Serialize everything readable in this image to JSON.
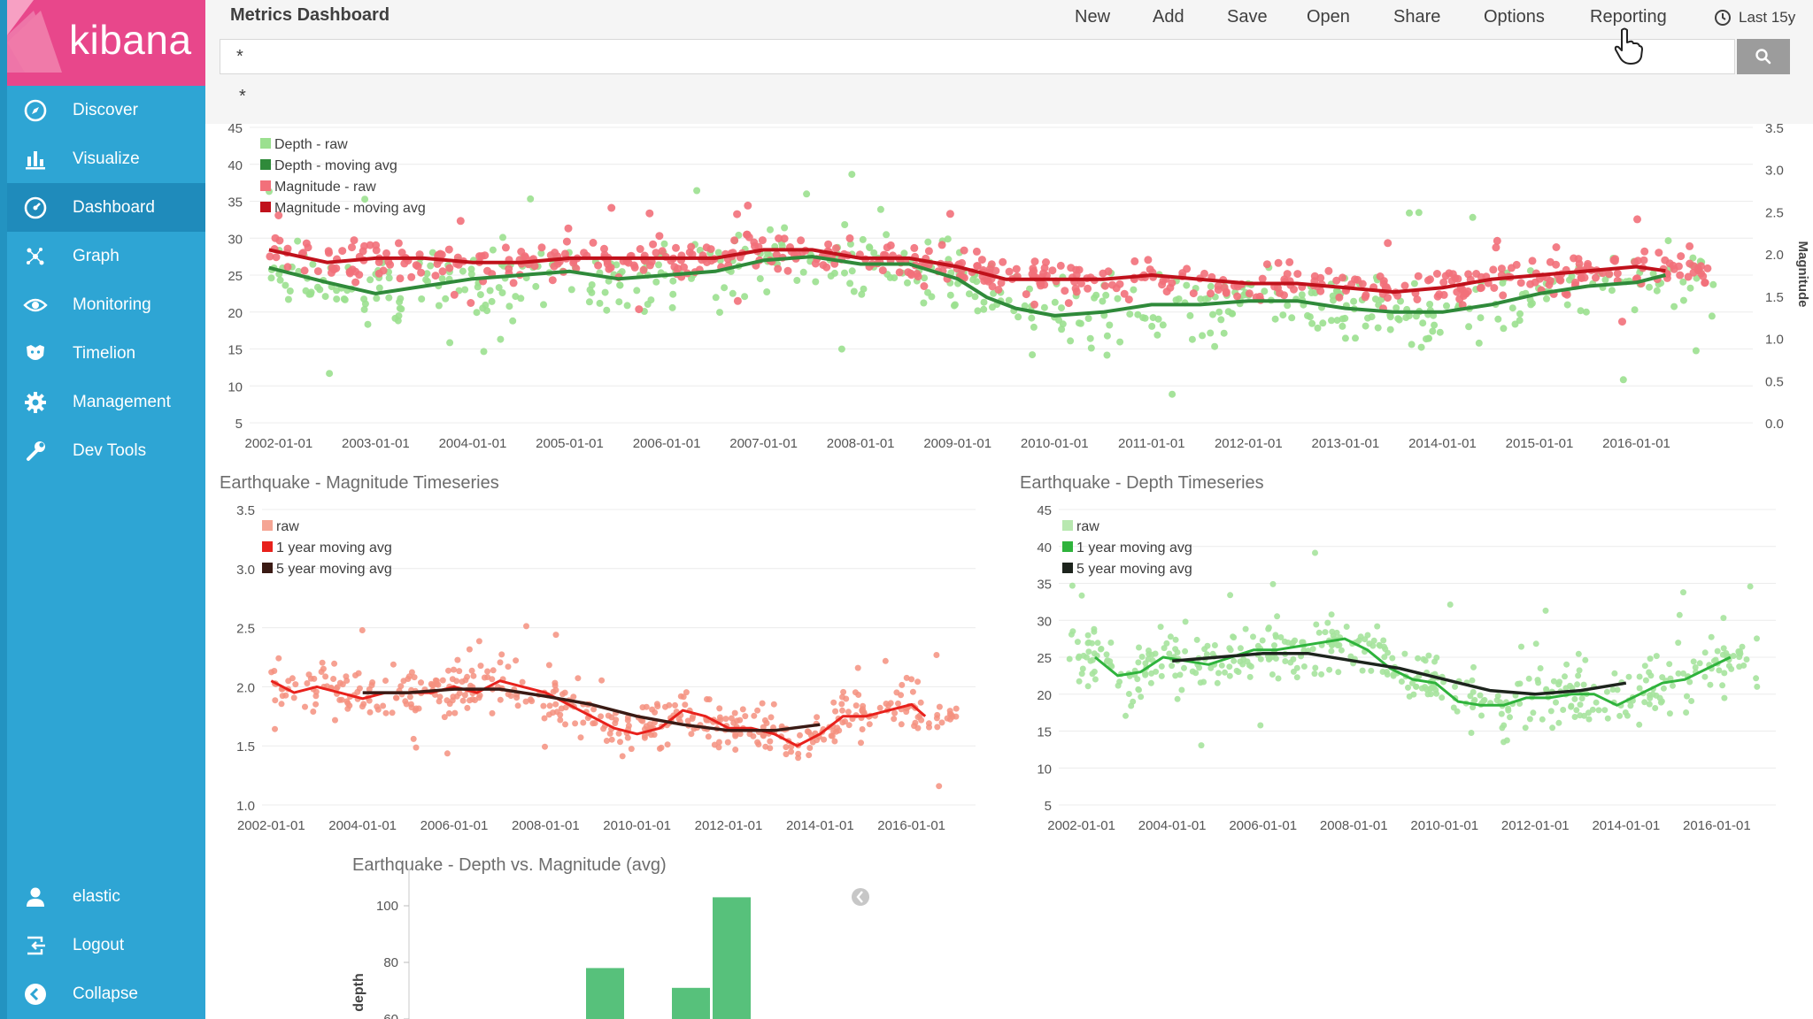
{
  "app": {
    "name": "kibana"
  },
  "nav": {
    "items": [
      {
        "label": "Discover",
        "icon": "compass-icon"
      },
      {
        "label": "Visualize",
        "icon": "bar-chart-icon"
      },
      {
        "label": "Dashboard",
        "icon": "dashboard-icon",
        "active": true
      },
      {
        "label": "Graph",
        "icon": "graph-icon"
      },
      {
        "label": "Monitoring",
        "icon": "eye-icon"
      },
      {
        "label": "Timelion",
        "icon": "timelion-icon"
      },
      {
        "label": "Management",
        "icon": "gear-icon"
      },
      {
        "label": "Dev Tools",
        "icon": "wrench-icon"
      }
    ],
    "bottom": [
      {
        "label": "elastic",
        "icon": "user-icon"
      },
      {
        "label": "Logout",
        "icon": "logout-icon"
      },
      {
        "label": "Collapse",
        "icon": "collapse-icon"
      }
    ]
  },
  "topbar": {
    "title": "Metrics Dashboard",
    "menu": [
      "New",
      "Add",
      "Save",
      "Open",
      "Share",
      "Options",
      "Reporting"
    ],
    "time_range": "Last 15y"
  },
  "search": {
    "value": "*",
    "suggestion": "*"
  },
  "colors": {
    "kibana_pink": "#e8478b",
    "sidebar_blue": "#2ea5d4",
    "sidebar_active": "#1f8bbb",
    "depth_raw": "#9be08f",
    "depth_avg": "#2f8a3a",
    "mag_raw": "#f2707a",
    "mag_avg": "#c0111b",
    "bar_green": "#57c17b"
  },
  "chart_data": [
    {
      "type": "scatter",
      "title": "",
      "xlabel": "",
      "ylabel": "",
      "y2label": "Magnitude",
      "x_ticks": [
        "2002-01-01",
        "2003-01-01",
        "2004-01-01",
        "2005-01-01",
        "2006-01-01",
        "2007-01-01",
        "2008-01-01",
        "2009-01-01",
        "2010-01-01",
        "2011-01-01",
        "2012-01-01",
        "2013-01-01",
        "2014-01-01",
        "2015-01-01",
        "2016-01-01"
      ],
      "xlim": [
        2001.7,
        2017.2
      ],
      "ylim": [
        5,
        45
      ],
      "y_ticks": [
        5,
        10,
        15,
        20,
        25,
        30,
        35,
        40,
        45
      ],
      "y2lim": [
        0,
        3.5
      ],
      "y2_ticks": [
        "0.0",
        "0.5",
        "1.0",
        "1.5",
        "2.0",
        "2.5",
        "3.0",
        "3.5"
      ],
      "legend": [
        "Depth - raw",
        "Depth - moving avg",
        "Magnitude - raw",
        "Magnitude - moving avg"
      ],
      "legend_position": "top-left",
      "series": [
        {
          "name": "Depth - moving avg",
          "axis": "left",
          "x": [
            2001.9,
            2002.5,
            2003.0,
            2003.5,
            2004.0,
            2004.5,
            2005.0,
            2005.5,
            2006.0,
            2006.5,
            2007.0,
            2007.5,
            2008.0,
            2008.5,
            2009.0,
            2009.3,
            2009.6,
            2010.0,
            2010.5,
            2011.0,
            2011.5,
            2012.0,
            2012.5,
            2013.0,
            2013.5,
            2014.0,
            2014.5,
            2015.0,
            2015.5,
            2016.0,
            2016.3
          ],
          "y": [
            26,
            24,
            22.5,
            23.5,
            24.5,
            25,
            25.5,
            24.5,
            25,
            25.5,
            27,
            27.5,
            26.5,
            26.5,
            24.5,
            22,
            20.5,
            19.5,
            20,
            21,
            21,
            21.5,
            21.5,
            20.5,
            20,
            20,
            21,
            22.5,
            23.5,
            24,
            25
          ]
        },
        {
          "name": "Magnitude - moving avg",
          "axis": "right",
          "x": [
            2001.9,
            2002.5,
            2003.0,
            2003.5,
            2004.0,
            2004.5,
            2005.0,
            2005.5,
            2006.0,
            2006.5,
            2007.0,
            2007.5,
            2008.0,
            2008.5,
            2009.0,
            2009.5,
            2010.0,
            2010.5,
            2011.0,
            2011.5,
            2012.0,
            2012.5,
            2013.0,
            2013.5,
            2014.0,
            2014.5,
            2015.0,
            2015.5,
            2016.0,
            2016.3
          ],
          "y": [
            2.05,
            1.9,
            1.95,
            1.95,
            1.9,
            1.9,
            1.95,
            1.95,
            1.95,
            1.95,
            2.05,
            2.05,
            1.95,
            1.95,
            1.85,
            1.7,
            1.7,
            1.7,
            1.75,
            1.7,
            1.65,
            1.65,
            1.6,
            1.55,
            1.6,
            1.7,
            1.75,
            1.8,
            1.85,
            1.8
          ]
        }
      ]
    },
    {
      "type": "scatter",
      "title": "Earthquake - Magnitude Timeseries",
      "x_ticks": [
        "2002-01-01",
        "2004-01-01",
        "2006-01-01",
        "2008-01-01",
        "2010-01-01",
        "2012-01-01",
        "2014-01-01",
        "2016-01-01"
      ],
      "xlim": [
        2001.8,
        2017.4
      ],
      "ylim": [
        1.0,
        3.5
      ],
      "y_ticks": [
        "1.0",
        "1.5",
        "2.0",
        "2.5",
        "3.0",
        "3.5"
      ],
      "legend": [
        "raw",
        "1 year moving avg",
        "5 year moving avg"
      ],
      "legend_position": "top-left",
      "series": [
        {
          "name": "1 year moving avg",
          "x": [
            2002.0,
            2002.5,
            2003.0,
            2003.5,
            2004.0,
            2004.5,
            2005.0,
            2005.5,
            2006.0,
            2006.5,
            2007.0,
            2007.5,
            2008.0,
            2008.5,
            2009.0,
            2009.5,
            2010.0,
            2010.5,
            2011.0,
            2011.5,
            2012.0,
            2012.5,
            2013.0,
            2013.5,
            2014.0,
            2014.5,
            2015.0,
            2015.5,
            2016.0,
            2016.3
          ],
          "y": [
            2.05,
            1.95,
            2.0,
            1.95,
            1.9,
            1.95,
            1.95,
            1.95,
            2.0,
            1.95,
            2.05,
            2.0,
            1.95,
            1.85,
            1.75,
            1.65,
            1.6,
            1.65,
            1.8,
            1.75,
            1.65,
            1.65,
            1.6,
            1.5,
            1.6,
            1.75,
            1.75,
            1.8,
            1.85,
            1.75
          ]
        },
        {
          "name": "5 year moving avg",
          "x": [
            2004.0,
            2005.0,
            2006.0,
            2007.0,
            2008.0,
            2009.0,
            2010.0,
            2011.0,
            2012.0,
            2013.0,
            2014.0
          ],
          "y": [
            1.95,
            1.95,
            1.98,
            1.98,
            1.92,
            1.85,
            1.75,
            1.68,
            1.63,
            1.63,
            1.68
          ]
        }
      ]
    },
    {
      "type": "scatter",
      "title": "Earthquake - Depth Timeseries",
      "x_ticks": [
        "2002-01-01",
        "2004-01-01",
        "2006-01-01",
        "2008-01-01",
        "2010-01-01",
        "2012-01-01",
        "2014-01-01",
        "2016-01-01"
      ],
      "xlim": [
        2001.5,
        2017.3
      ],
      "ylim": [
        5,
        45
      ],
      "y_ticks": [
        5,
        10,
        15,
        20,
        25,
        30,
        35,
        40,
        45
      ],
      "legend": [
        "raw",
        "1 year moving avg",
        "5 year moving avg"
      ],
      "legend_position": "top-left",
      "series": [
        {
          "name": "1 year moving avg",
          "x": [
            2002.3,
            2002.8,
            2003.3,
            2003.8,
            2004.3,
            2004.8,
            2005.3,
            2005.8,
            2006.3,
            2006.8,
            2007.3,
            2007.8,
            2008.3,
            2008.8,
            2009.3,
            2009.8,
            2010.3,
            2010.8,
            2011.3,
            2011.8,
            2012.3,
            2012.8,
            2013.3,
            2013.8,
            2014.3,
            2014.8,
            2015.3,
            2015.8,
            2016.3
          ],
          "y": [
            25,
            22.5,
            23,
            25,
            24.5,
            24,
            25,
            26,
            26,
            26.5,
            27,
            27.5,
            26,
            23.5,
            22,
            21.5,
            19,
            18.5,
            18.5,
            19.5,
            19.5,
            20,
            20,
            18.5,
            20,
            21.5,
            22,
            23.5,
            25
          ]
        },
        {
          "name": "5 year moving avg",
          "x": [
            2004.0,
            2005.0,
            2006.0,
            2007.0,
            2008.0,
            2009.0,
            2010.0,
            2011.0,
            2012.0,
            2013.0,
            2014.0
          ],
          "y": [
            24.5,
            25,
            25.5,
            25.5,
            24.5,
            23.5,
            22,
            20.5,
            20,
            20.5,
            21.5
          ]
        }
      ]
    },
    {
      "type": "bar",
      "title": "Earthquake - Depth vs. Magnitude (avg)",
      "ylabel": "depth",
      "y_ticks": [
        60,
        80,
        100
      ],
      "ylim": [
        60,
        110
      ],
      "values": [
        78,
        71,
        103
      ]
    }
  ]
}
